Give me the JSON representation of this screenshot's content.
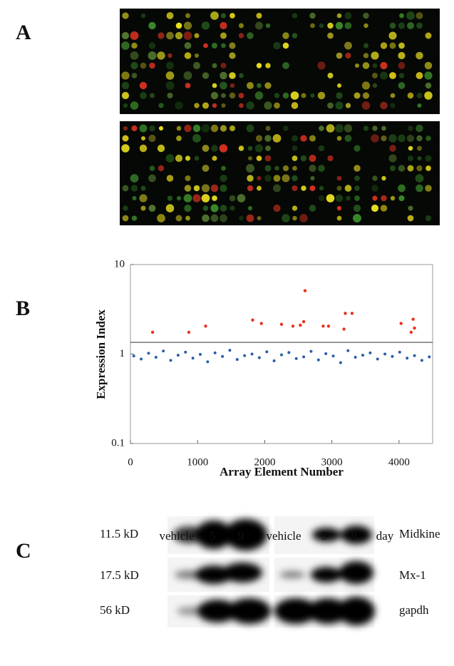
{
  "panel_labels": [
    "A",
    "B",
    "C"
  ],
  "chart_data": {
    "type": "scatter",
    "y_label": "Expression Index",
    "x_label": "Array Element Number",
    "xlim": [
      0,
      4500
    ],
    "xticks": [
      0,
      1000,
      2000,
      3000,
      4000
    ],
    "ylim": [
      0.1,
      10
    ],
    "yticks": [
      0.1,
      1,
      10
    ],
    "log_y": true,
    "threshold": 1.35,
    "series": [
      {
        "color": "#2b5fa6",
        "x": [
          50,
          160,
          270,
          380,
          490,
          600,
          710,
          820,
          930,
          1040,
          1150,
          1260,
          1370,
          1480,
          1590,
          1700,
          1810,
          1920,
          2030,
          2140,
          2250,
          2360,
          2470,
          2580,
          2690,
          2800,
          2910,
          3020,
          3130,
          3240,
          3350,
          3460,
          3570,
          3680,
          3790,
          3900,
          4010,
          4120,
          4230,
          4340,
          4450
        ],
        "values": [
          0.95,
          0.88,
          1.02,
          0.92,
          1.08,
          0.85,
          0.97,
          1.05,
          0.9,
          0.99,
          0.82,
          1.03,
          0.94,
          1.1,
          0.87,
          0.96,
          1.0,
          0.91,
          1.06,
          0.84,
          0.98,
          1.04,
          0.89,
          0.93,
          1.07,
          0.86,
          1.01,
          0.95,
          0.8,
          1.09,
          0.92,
          0.97,
          1.03,
          0.88,
          1.0,
          0.94,
          1.05,
          0.9,
          0.96,
          0.85,
          0.93
        ]
      },
      {
        "color": "#e8321e",
        "x": [
          330,
          870,
          1120,
          1820,
          1950,
          2250,
          2420,
          2530,
          2580,
          2600,
          2870,
          2950,
          3180,
          3200,
          3300,
          4030,
          4180,
          4210,
          4230
        ],
        "values": [
          1.75,
          1.75,
          2.05,
          2.4,
          2.2,
          2.15,
          2.05,
          2.1,
          2.3,
          5.1,
          2.05,
          2.05,
          1.9,
          2.85,
          2.85,
          2.2,
          1.75,
          2.45,
          1.95
        ]
      }
    ]
  },
  "blot": {
    "columns": [
      "vehicle",
      "5",
      "9",
      "vehicle",
      "5",
      "9",
      "day"
    ],
    "sizes": [
      "11.5 kD",
      "17.5 kD",
      "56 kD"
    ],
    "proteins": [
      "Midkine",
      "Mx-1",
      "gapdh"
    ]
  }
}
